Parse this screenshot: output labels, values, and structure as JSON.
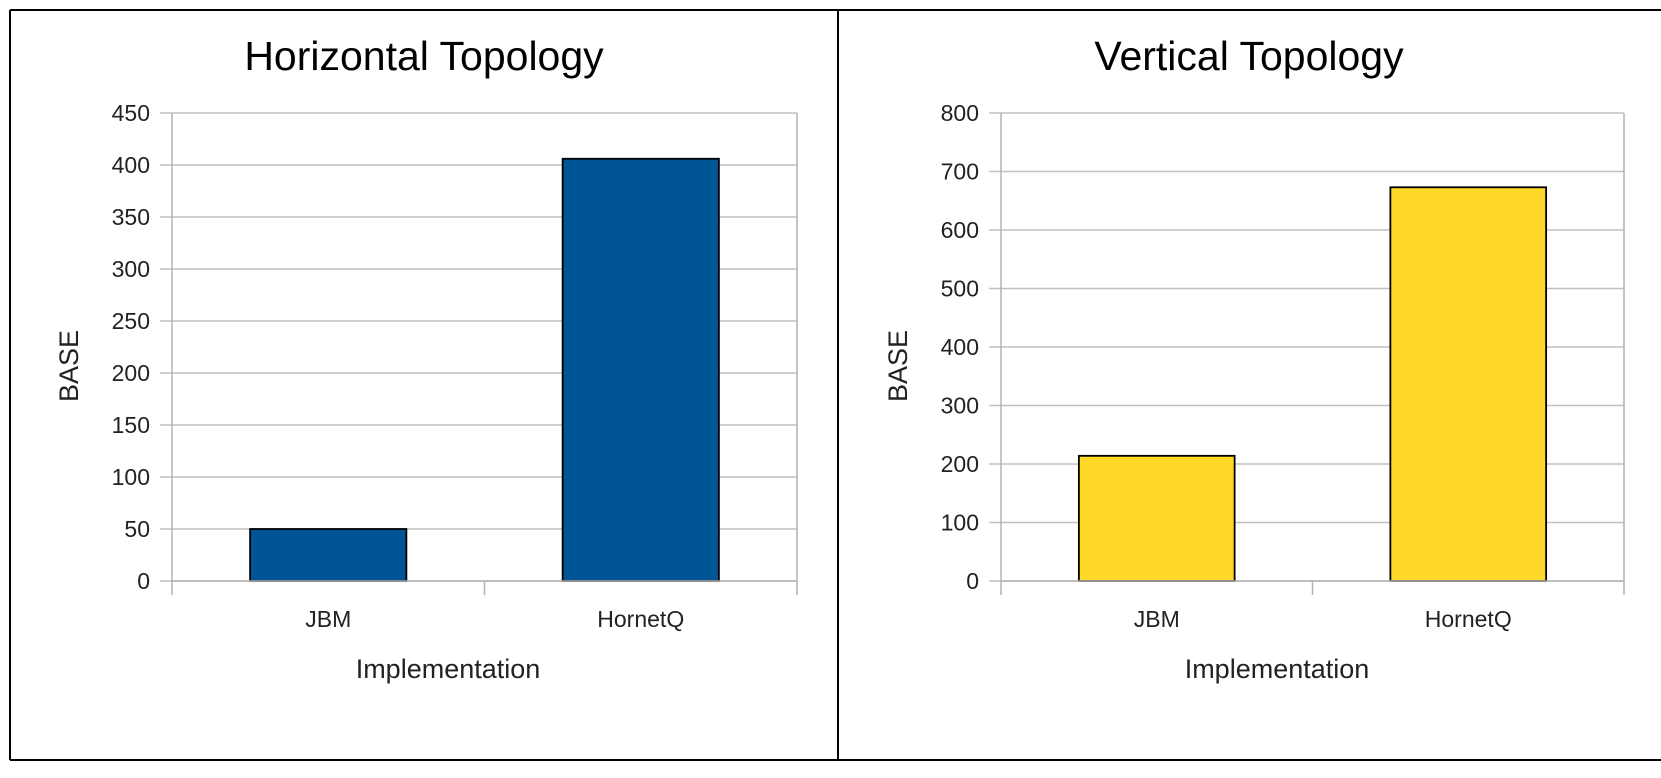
{
  "chart_data": [
    {
      "type": "bar",
      "title": "Horizontal Topology",
      "xlabel": "Implementation",
      "ylabel": "BASE",
      "categories": [
        "JBM",
        "HornetQ"
      ],
      "values": [
        50,
        406
      ],
      "ylim": [
        0,
        450
      ],
      "yticks": [
        0,
        50,
        100,
        150,
        200,
        250,
        300,
        350,
        400,
        450
      ],
      "color": "#005596",
      "grid": true,
      "legend": "none"
    },
    {
      "type": "bar",
      "title": "Vertical Topology",
      "xlabel": "Implementation",
      "ylabel": "BASE",
      "categories": [
        "JBM",
        "HornetQ"
      ],
      "values": [
        214,
        673
      ],
      "ylim": [
        0,
        800
      ],
      "yticks": [
        0,
        100,
        200,
        300,
        400,
        500,
        600,
        700,
        800
      ],
      "color": "#ffd827",
      "grid": true,
      "legend": "none"
    }
  ]
}
